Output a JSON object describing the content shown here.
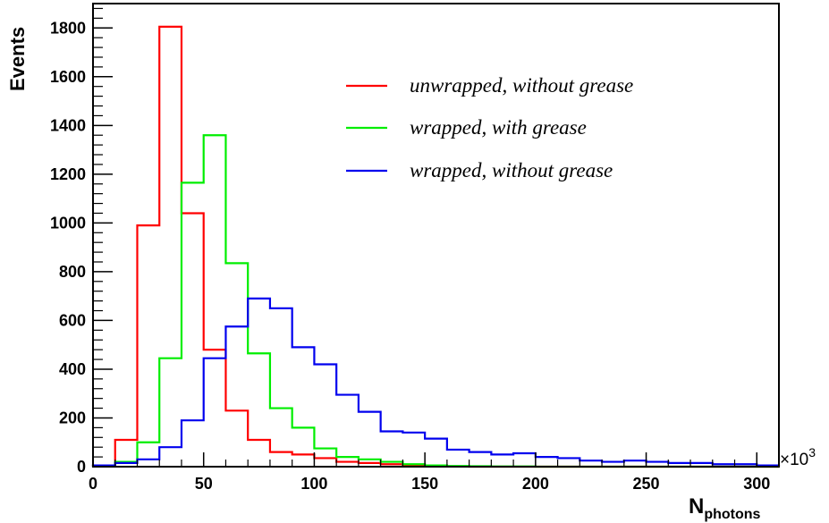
{
  "chart_data": {
    "type": "line",
    "title": "",
    "xlabel": "N",
    "xlabel_subscript": "photons",
    "ylabel": "Events",
    "x_multiplier": "×10",
    "x_multiplier_exponent": "3",
    "xlim": [
      0,
      310
    ],
    "ylim": [
      0,
      1900
    ],
    "x_ticks": [
      0,
      50,
      100,
      150,
      200,
      250,
      300
    ],
    "y_ticks": [
      0,
      200,
      400,
      600,
      800,
      1000,
      1200,
      1400,
      1600,
      1800
    ],
    "grid": false,
    "legend_position": "top-right",
    "bin_edges": [
      0,
      10,
      20,
      30,
      40,
      50,
      60,
      70,
      80,
      90,
      100,
      110,
      120,
      130,
      140,
      150,
      160,
      170,
      180,
      190,
      200,
      210,
      220,
      230,
      240,
      250,
      260,
      270,
      280,
      290,
      300,
      310
    ],
    "series": [
      {
        "name": "unwrapped, without grease",
        "color": "#ff0000",
        "values": [
          5,
          110,
          990,
          1805,
          1040,
          480,
          230,
          110,
          60,
          50,
          35,
          20,
          15,
          10,
          5,
          2,
          1,
          0,
          0,
          0,
          0,
          0,
          0,
          0,
          0,
          0,
          0,
          0,
          0,
          0,
          0
        ]
      },
      {
        "name": "wrapped, with grease",
        "color": "#00ee00",
        "values": [
          5,
          20,
          100,
          445,
          1165,
          1360,
          835,
          465,
          240,
          160,
          75,
          40,
          30,
          20,
          10,
          5,
          3,
          2,
          1,
          1,
          0,
          0,
          0,
          0,
          0,
          0,
          0,
          0,
          0,
          0,
          0
        ]
      },
      {
        "name": "wrapped, without grease",
        "color": "#0000ee",
        "values": [
          5,
          15,
          30,
          80,
          190,
          445,
          575,
          690,
          650,
          490,
          420,
          295,
          225,
          145,
          140,
          115,
          70,
          60,
          50,
          55,
          40,
          35,
          25,
          20,
          25,
          20,
          15,
          15,
          10,
          10,
          5
        ]
      }
    ]
  }
}
